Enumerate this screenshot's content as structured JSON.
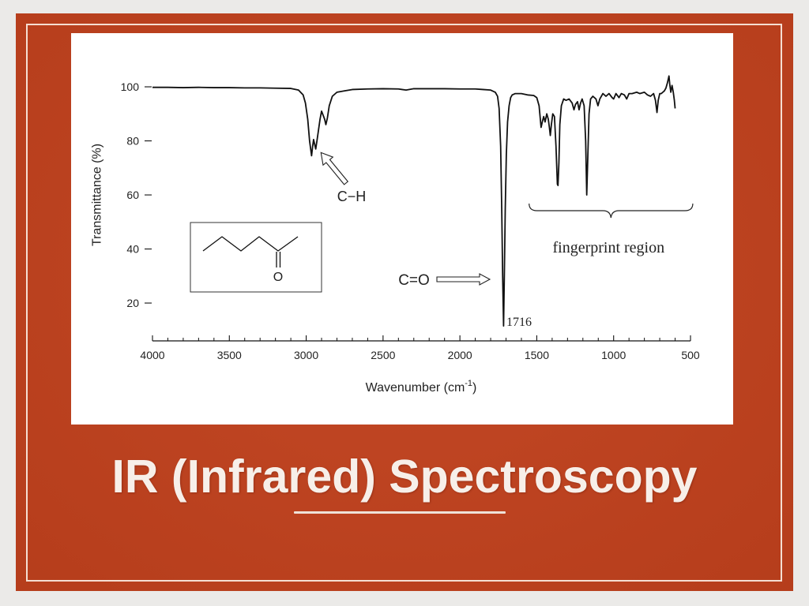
{
  "slide": {
    "title": "IR (Infrared) Spectroscopy",
    "colors": {
      "background": "#c1411d",
      "frame": "#ebeae8",
      "title_text": "#f7efe9",
      "chart_panel": "#ffffff",
      "trace": "#111111"
    }
  },
  "chart_data": {
    "type": "line",
    "xlabel": "Wavenumber (cm-1)",
    "ylabel": "Transmittance (%)",
    "xticks": [
      4000,
      3500,
      3000,
      2500,
      2000,
      1500,
      1000,
      500
    ],
    "yticks": [
      100,
      80,
      60,
      40,
      20
    ],
    "xlim": [
      4000,
      500
    ],
    "ylim": [
      6,
      105
    ],
    "grid": false,
    "x": [
      4000,
      3900,
      3800,
      3700,
      3600,
      3500,
      3400,
      3300,
      3200,
      3100,
      3050,
      3020,
      3005,
      2990,
      2978,
      2965,
      2958,
      2952,
      2946,
      2938,
      2930,
      2920,
      2910,
      2900,
      2890,
      2880,
      2872,
      2862,
      2850,
      2830,
      2800,
      2750,
      2700,
      2600,
      2500,
      2400,
      2350,
      2300,
      2200,
      2100,
      2000,
      1900,
      1850,
      1800,
      1770,
      1755,
      1745,
      1735,
      1728,
      1722,
      1716,
      1711,
      1705,
      1698,
      1690,
      1680,
      1670,
      1660,
      1640,
      1600,
      1560,
      1520,
      1500,
      1485,
      1472,
      1462,
      1455,
      1446,
      1435,
      1425,
      1418,
      1412,
      1405,
      1396,
      1385,
      1375,
      1366,
      1362,
      1356,
      1350,
      1340,
      1325,
      1310,
      1290,
      1270,
      1258,
      1248,
      1235,
      1225,
      1215,
      1205,
      1192,
      1182,
      1175,
      1168,
      1160,
      1150,
      1135,
      1115,
      1102,
      1090,
      1070,
      1050,
      1030,
      1010,
      1000,
      985,
      965,
      950,
      930,
      915,
      900,
      880,
      850,
      830,
      800,
      780,
      760,
      740,
      728,
      718,
      710,
      700,
      690,
      680,
      670,
      660,
      650,
      640,
      635,
      628,
      620,
      612,
      605,
      600
    ],
    "series": [
      {
        "values": [
          99.8,
          99.8,
          99.7,
          99.8,
          99.7,
          99.7,
          99.6,
          99.6,
          99.5,
          99.4,
          98.8,
          97,
          94,
          88,
          80,
          74.5,
          78,
          80.5,
          79,
          77,
          80,
          84,
          88,
          91,
          89.5,
          88,
          86,
          88.5,
          93,
          96.5,
          98,
          98.5,
          99,
          99.2,
          99.3,
          99.2,
          98.8,
          99.3,
          99.3,
          99.3,
          99.2,
          99.2,
          99,
          98.8,
          98,
          96.5,
          92,
          78,
          55,
          30,
          11.5,
          30,
          55,
          75,
          87,
          93,
          96,
          97,
          97.5,
          97.5,
          97,
          96.8,
          96,
          93,
          85,
          87.5,
          89,
          87,
          90,
          88,
          85,
          82,
          86,
          90,
          89,
          78,
          64,
          63.5,
          72,
          86,
          93,
          95.5,
          95,
          95.5,
          94,
          91.5,
          93.5,
          94.5,
          91.5,
          94,
          95.5,
          93,
          80,
          60,
          74,
          90,
          95.5,
          96.5,
          95.5,
          93,
          95.5,
          97.5,
          96.5,
          97.5,
          96,
          95.5,
          97.5,
          96,
          97.5,
          97,
          95.5,
          97.5,
          97.5,
          98,
          97.5,
          98,
          97,
          96.5,
          97.5,
          95,
          90.5,
          95,
          97.5,
          97.5,
          98,
          98.5,
          99.5,
          101.5,
          104,
          101,
          98,
          100.5,
          98,
          95,
          92
        ]
      }
    ],
    "annotations": {
      "ch_label": "C−H",
      "co_label": "C=O",
      "peak_label": "1716",
      "region_label": "fingerprint region",
      "fingerprint_range": [
        1550,
        485
      ]
    }
  },
  "structure": {
    "atom_label": "O"
  }
}
